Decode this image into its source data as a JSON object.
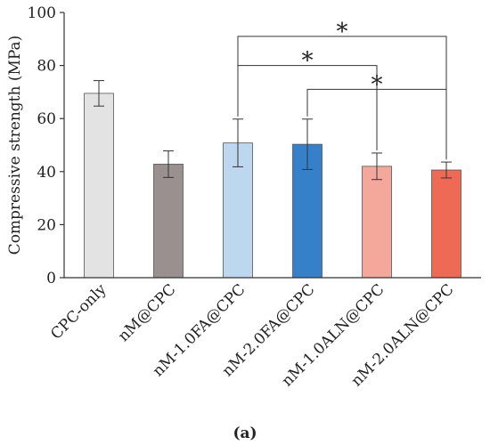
{
  "chart_data": {
    "type": "bar",
    "title": "",
    "xlabel": "",
    "ylabel": "Compressive strength (MPa)",
    "ylim": [
      0,
      100
    ],
    "yticks": [
      "0",
      "20",
      "40",
      "60",
      "80",
      "100"
    ],
    "categories": [
      "CPC-only",
      "nM@CPC",
      "nM-1.0FA@CPC",
      "nM-2.0FA@CPC",
      "nM-1.0ALN@CPC",
      "nM-2.0ALN@CPC"
    ],
    "values": [
      69.5,
      42.8,
      50.8,
      50.3,
      42.0,
      40.6
    ],
    "errors": [
      4.8,
      5.0,
      9.0,
      9.5,
      5.0,
      3.0
    ],
    "colors": [
      "#e3e3e3",
      "#9a9090",
      "#bdd7ee",
      "#3580c8",
      "#f4a89c",
      "#ee6a55"
    ],
    "grid": false,
    "legend": "none",
    "significance": [
      {
        "from": 2,
        "to": 5,
        "label": "*",
        "level": 91
      },
      {
        "from": 2,
        "to": 4,
        "label": "*",
        "level": 80
      },
      {
        "from": 3,
        "to": 5,
        "label": "*",
        "level": 71
      }
    ]
  },
  "caption": "(a)"
}
